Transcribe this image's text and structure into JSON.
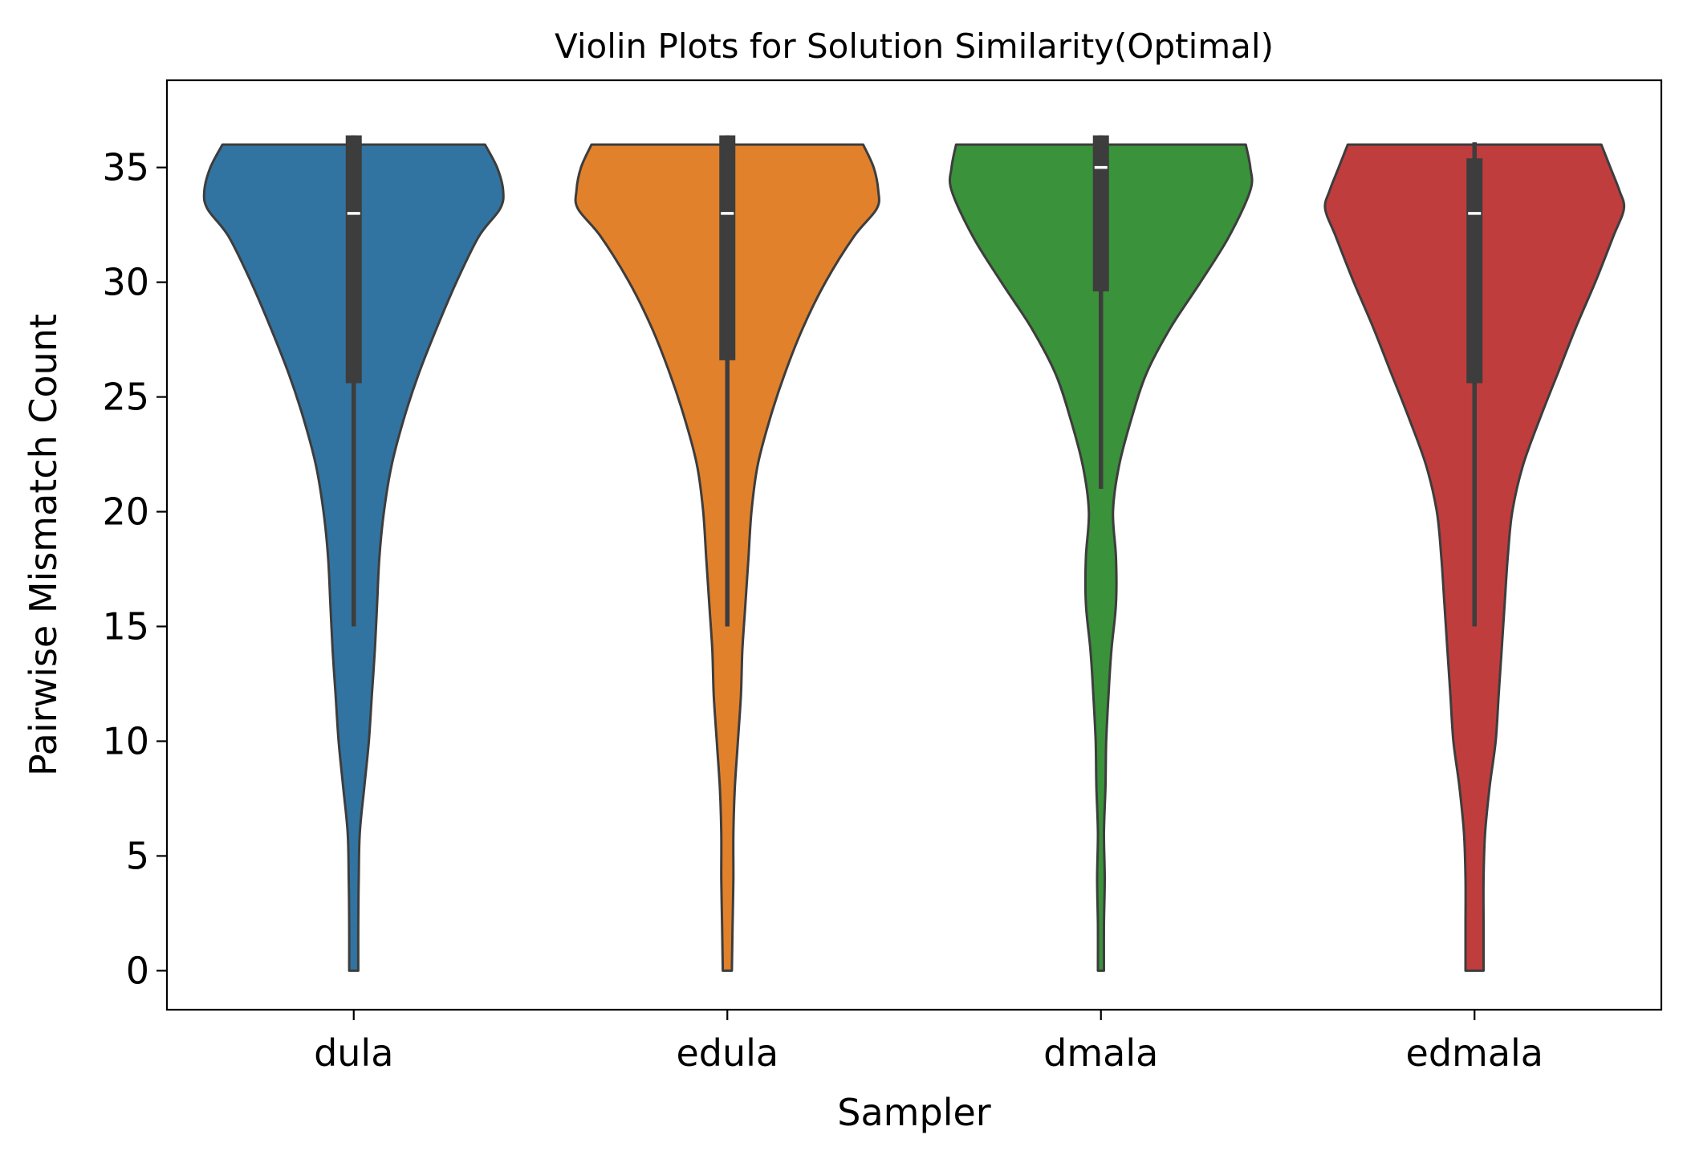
{
  "chart_data": {
    "type": "violin",
    "title": "Violin Plots for Solution Similarity(Optimal)",
    "xlabel": "Sampler",
    "ylabel": "Pairwise Mismatch Count",
    "ylim": [
      -1.7,
      38.8
    ],
    "yticks": [
      0,
      5,
      10,
      15,
      20,
      25,
      30,
      35
    ],
    "grid": false,
    "categories": [
      "dula",
      "edula",
      "dmala",
      "edmala"
    ],
    "series": [
      {
        "category": "dula",
        "color": "#3274a1",
        "density_profile": [
          [
            0,
            0.03
          ],
          [
            2,
            0.03
          ],
          [
            4,
            0.033
          ],
          [
            6,
            0.04
          ],
          [
            8,
            0.07
          ],
          [
            10,
            0.1
          ],
          [
            12,
            0.12
          ],
          [
            14,
            0.14
          ],
          [
            16,
            0.155
          ],
          [
            18,
            0.17
          ],
          [
            20,
            0.2
          ],
          [
            22,
            0.25
          ],
          [
            24,
            0.33
          ],
          [
            26,
            0.43
          ],
          [
            28,
            0.55
          ],
          [
            30,
            0.68
          ],
          [
            32,
            0.83
          ],
          [
            33.2,
            0.97
          ],
          [
            34,
            0.99
          ],
          [
            35,
            0.95
          ],
          [
            36,
            0.87
          ]
        ],
        "box": {
          "q1": 25.6,
          "median": 33,
          "q3": 36.4,
          "whisker_low": 15,
          "whisker_high": 36.4
        }
      },
      {
        "category": "edula",
        "color": "#e1812c",
        "density_profile": [
          [
            0,
            0.03
          ],
          [
            2,
            0.035
          ],
          [
            4,
            0.04
          ],
          [
            6,
            0.04
          ],
          [
            8,
            0.05
          ],
          [
            10,
            0.07
          ],
          [
            12,
            0.09
          ],
          [
            14,
            0.1
          ],
          [
            16,
            0.12
          ],
          [
            18,
            0.14
          ],
          [
            20,
            0.16
          ],
          [
            22,
            0.2
          ],
          [
            24,
            0.28
          ],
          [
            26,
            0.38
          ],
          [
            28,
            0.5
          ],
          [
            30,
            0.65
          ],
          [
            32,
            0.84
          ],
          [
            33.2,
            0.99
          ],
          [
            34,
            1.0
          ],
          [
            35,
            0.97
          ],
          [
            36,
            0.9
          ]
        ],
        "box": {
          "q1": 26.6,
          "median": 33,
          "q3": 36.4,
          "whisker_low": 15,
          "whisker_high": 36.4
        }
      },
      {
        "category": "dmala",
        "color": "#3a923a",
        "density_profile": [
          [
            0,
            0.02
          ],
          [
            2,
            0.02
          ],
          [
            4,
            0.025
          ],
          [
            6,
            0.02
          ],
          [
            8,
            0.03
          ],
          [
            10,
            0.035
          ],
          [
            12,
            0.05
          ],
          [
            14,
            0.07
          ],
          [
            16,
            0.1
          ],
          [
            18,
            0.1
          ],
          [
            20,
            0.08
          ],
          [
            22,
            0.12
          ],
          [
            24,
            0.2
          ],
          [
            26,
            0.3
          ],
          [
            28,
            0.46
          ],
          [
            30,
            0.66
          ],
          [
            32,
            0.85
          ],
          [
            34,
            0.99
          ],
          [
            35,
            0.99
          ],
          [
            36,
            0.96
          ]
        ],
        "box": {
          "q1": 29.6,
          "median": 35,
          "q3": 36.4,
          "whisker_low": 21,
          "whisker_high": 36.4
        }
      },
      {
        "category": "edmala",
        "color": "#c03d3e",
        "density_profile": [
          [
            0,
            0.06
          ],
          [
            2,
            0.06
          ],
          [
            4,
            0.06
          ],
          [
            6,
            0.07
          ],
          [
            8,
            0.1
          ],
          [
            10,
            0.14
          ],
          [
            12,
            0.16
          ],
          [
            14,
            0.18
          ],
          [
            16,
            0.2
          ],
          [
            18,
            0.22
          ],
          [
            20,
            0.25
          ],
          [
            22,
            0.32
          ],
          [
            24,
            0.43
          ],
          [
            26,
            0.55
          ],
          [
            28,
            0.67
          ],
          [
            30,
            0.8
          ],
          [
            32,
            0.92
          ],
          [
            33.2,
            0.99
          ],
          [
            34,
            0.96
          ],
          [
            35,
            0.9
          ],
          [
            36,
            0.84
          ]
        ],
        "box": {
          "q1": 25.6,
          "median": 33,
          "q3": 35.4,
          "whisker_low": 15,
          "whisker_high": 36.1
        }
      }
    ]
  }
}
